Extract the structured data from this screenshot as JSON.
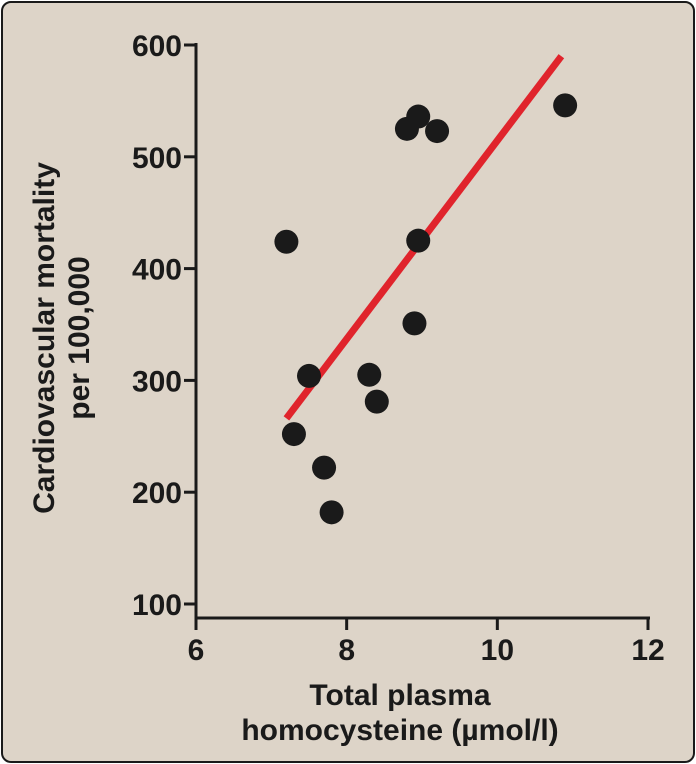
{
  "chart_data": {
    "type": "scatter",
    "xlabel": [
      "Total plasma",
      "homocysteine (µmol/l)"
    ],
    "ylabel": [
      "Cardiovascular mortality",
      "per 100,000"
    ],
    "xlim": [
      6,
      12
    ],
    "ylim": [
      100,
      600
    ],
    "xticks": [
      6,
      8,
      10,
      12
    ],
    "yticks": [
      100,
      200,
      300,
      400,
      500,
      600
    ],
    "grid": false,
    "points": [
      {
        "x": 7.2,
        "y": 424
      },
      {
        "x": 7.3,
        "y": 252
      },
      {
        "x": 7.5,
        "y": 304
      },
      {
        "x": 7.7,
        "y": 222
      },
      {
        "x": 7.8,
        "y": 182
      },
      {
        "x": 8.3,
        "y": 305
      },
      {
        "x": 8.4,
        "y": 281
      },
      {
        "x": 8.8,
        "y": 525
      },
      {
        "x": 8.9,
        "y": 351
      },
      {
        "x": 8.95,
        "y": 425
      },
      {
        "x": 8.95,
        "y": 536
      },
      {
        "x": 9.2,
        "y": 523
      },
      {
        "x": 10.9,
        "y": 546
      }
    ],
    "trendline": {
      "x1": 7.2,
      "y1": 266,
      "x2": 10.85,
      "y2": 590
    },
    "colors": {
      "points": "#1a1a1a",
      "trendline": "#e0242c",
      "background": "#ddd4c8",
      "axis": "#1a1a1a"
    }
  }
}
